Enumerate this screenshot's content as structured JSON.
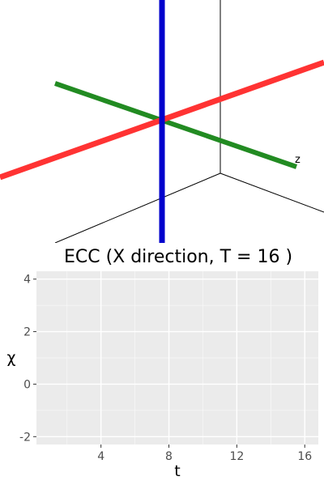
{
  "scene": {
    "axis_z_label": "z",
    "colors": {
      "x_axis": "#ff3333",
      "y_axis": "#0000cc",
      "z_axis": "#228b22",
      "box_edges": "#000000"
    }
  },
  "chart_data": {
    "type": "line",
    "title": "ECC (X direction, T = 16 )",
    "xlabel": "t",
    "ylabel": "χ",
    "xlim": [
      0.2,
      16.8
    ],
    "ylim": [
      -2.3,
      4.3
    ],
    "x_ticks": [
      4,
      8,
      12,
      16
    ],
    "y_ticks": [
      -2,
      0,
      2,
      4
    ],
    "grid": true,
    "panel_background": "#ebebeb",
    "series": []
  }
}
